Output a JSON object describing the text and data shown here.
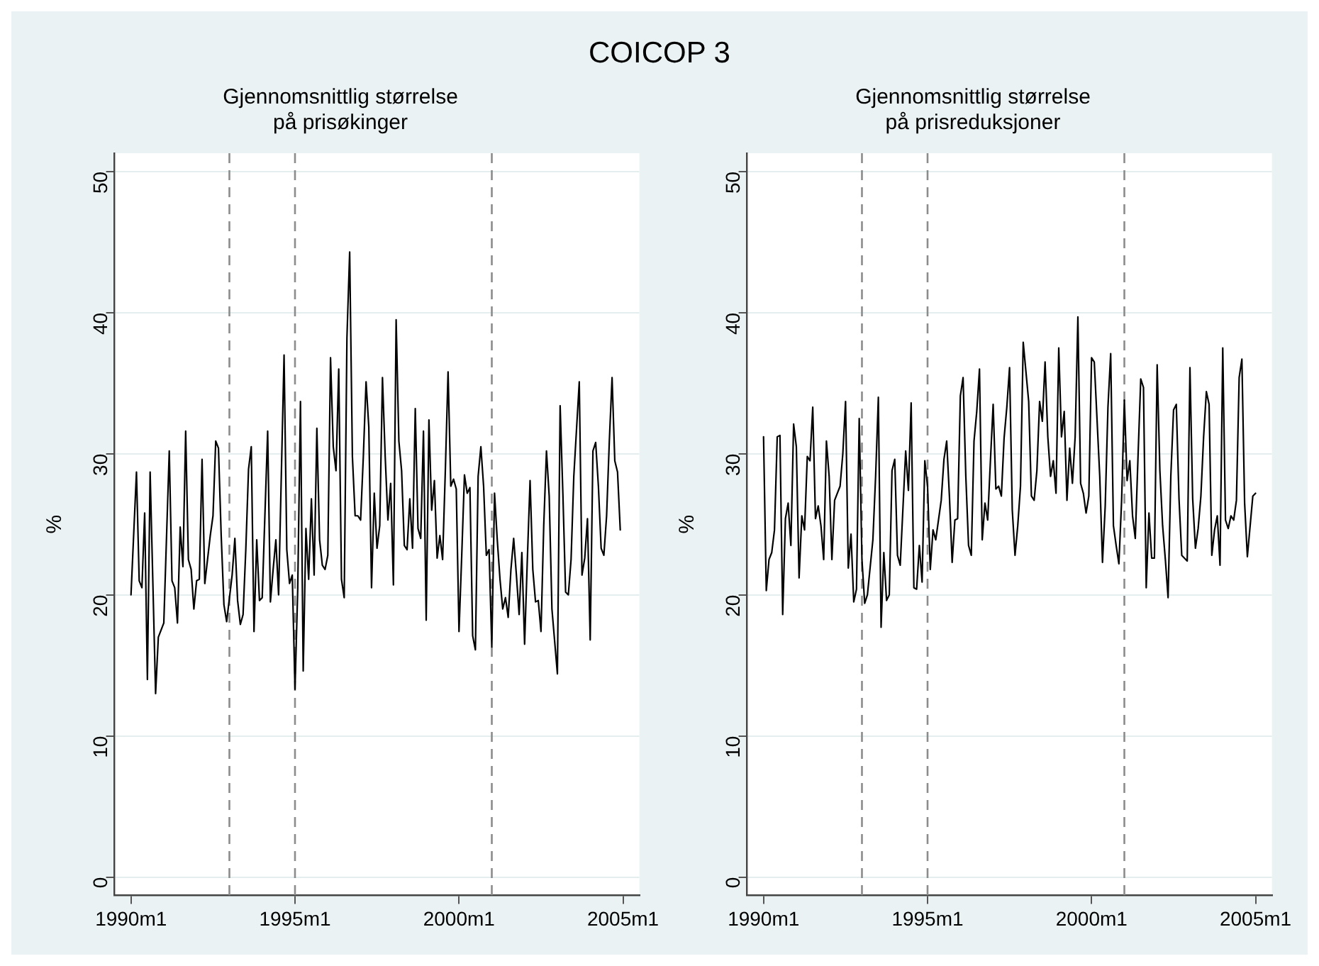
{
  "chart_data": [
    {
      "type": "line",
      "title": "COICOP 3",
      "subtitle": "Gjennomsnittlig størrelse\npå prisøkinger",
      "ylabel": "%",
      "xlim": [
        "1989-07",
        "2005-07"
      ],
      "ylim": [
        -1.3,
        51.3
      ],
      "xticks": [
        {
          "value": "1990-01",
          "label": "1990m1"
        },
        {
          "value": "1995-01",
          "label": "1995m1"
        },
        {
          "value": "2000-01",
          "label": "2000m1"
        },
        {
          "value": "2005-01",
          "label": "2005m1"
        }
      ],
      "yticks": [
        0,
        10,
        20,
        30,
        40,
        50
      ],
      "grid": "y",
      "legend": false,
      "ref_lines": [
        {
          "axis": "x",
          "value": "1993-01",
          "color": "#8c8c8c",
          "line_style": "dashed"
        },
        {
          "axis": "x",
          "value": "1995-01",
          "color": "#8c8c8c",
          "line_style": "dashed"
        },
        {
          "axis": "x",
          "value": "2001-01",
          "color": "#8c8c8c",
          "line_style": "dashed"
        }
      ],
      "series": [
        {
          "color": "#000000",
          "x": [
            "1990-01",
            "1990-03",
            "1990-04",
            "1990-05",
            "1990-06",
            "1990-07",
            "1990-08",
            "1990-10",
            "1990-11",
            "1991-01",
            "1991-03",
            "1991-04",
            "1991-05",
            "1991-06",
            "1991-07",
            "1991-08",
            "1991-09",
            "1991-10",
            "1991-11",
            "1991-12",
            "1992-01",
            "1992-02",
            "1992-03",
            "1992-04",
            "1992-06",
            "1992-07",
            "1992-08",
            "1992-09",
            "1992-10",
            "1992-11",
            "1992-12",
            "1993-02",
            "1993-03",
            "1993-04",
            "1993-05",
            "1993-06",
            "1993-07",
            "1993-08",
            "1993-09",
            "1993-10",
            "1993-11",
            "1993-12",
            "1994-01",
            "1994-03",
            "1994-04",
            "1994-05",
            "1994-06",
            "1994-07",
            "1994-09",
            "1994-10",
            "1994-11",
            "1994-12",
            "1995-01",
            "1995-02",
            "1995-03",
            "1995-04",
            "1995-05",
            "1995-06",
            "1995-07",
            "1995-08",
            "1995-09",
            "1995-10",
            "1995-11",
            "1995-12",
            "1996-01",
            "1996-02",
            "1996-03",
            "1996-04",
            "1996-05",
            "1996-06",
            "1996-07",
            "1996-08",
            "1996-09",
            "1996-10",
            "1996-11",
            "1996-12",
            "1997-01",
            "1997-02",
            "1997-03",
            "1997-04",
            "1997-05",
            "1997-06",
            "1997-07",
            "1997-08",
            "1997-09",
            "1997-10",
            "1997-11",
            "1997-12",
            "1998-01",
            "1998-02",
            "1998-03",
            "1998-04",
            "1998-05",
            "1998-06",
            "1998-07",
            "1998-08",
            "1998-09",
            "1998-10",
            "1998-11",
            "1998-12",
            "1999-01",
            "1999-02",
            "1999-03",
            "1999-04",
            "1999-05",
            "1999-06",
            "1999-07",
            "1999-08",
            "1999-09",
            "1999-10",
            "1999-11",
            "1999-12",
            "2000-01",
            "2000-02",
            "2000-03",
            "2000-04",
            "2000-05",
            "2000-06",
            "2000-07",
            "2000-08",
            "2000-09",
            "2000-10",
            "2000-11",
            "2000-12",
            "2001-01",
            "2001-02",
            "2001-03",
            "2001-04",
            "2001-05",
            "2001-06",
            "2001-07",
            "2001-08",
            "2001-09",
            "2001-10",
            "2001-11",
            "2001-12",
            "2002-01",
            "2002-02",
            "2002-03",
            "2002-04",
            "2002-05",
            "2002-06",
            "2002-07",
            "2002-08",
            "2002-09",
            "2002-10",
            "2002-11",
            "2003-01",
            "2003-02",
            "2003-03",
            "2003-04",
            "2003-05",
            "2003-06",
            "2003-07",
            "2003-09",
            "2003-10",
            "2003-11",
            "2003-12",
            "2004-01",
            "2004-02",
            "2004-03",
            "2004-04",
            "2004-05",
            "2004-06",
            "2004-07",
            "2004-08",
            "2004-09",
            "2004-10",
            "2004-11",
            "2004-12"
          ],
          "values": [
            20,
            28.7,
            21,
            20.5,
            25.8,
            14,
            28.7,
            13,
            17,
            18,
            30.2,
            21,
            20.5,
            18,
            24.8,
            22,
            31.6,
            22.5,
            21.8,
            19,
            21,
            21.1,
            29.6,
            20.8,
            24.2,
            25.6,
            30.9,
            30.4,
            24.2,
            19.3,
            18.1,
            21.4,
            24,
            19.6,
            17.9,
            18.6,
            23.2,
            28.9,
            30.5,
            17.4,
            23.9,
            19.6,
            19.8,
            31.6,
            19.5,
            21.8,
            23.9,
            20,
            37,
            23.2,
            20.8,
            21.4,
            13.3,
            20.4,
            33.7,
            14.6,
            24.7,
            21.1,
            26.8,
            21.4,
            31.8,
            23.9,
            22.1,
            21.8,
            22.8,
            36.8,
            30.5,
            28.8,
            36,
            21.1,
            19.8,
            38.2,
            44.3,
            29.8,
            25.6,
            25.6,
            25.3,
            29.8,
            35.1,
            31.9,
            20.5,
            27.2,
            23.3,
            24.9,
            35.4,
            29.8,
            25.3,
            27.9,
            20.7,
            39.5,
            30.9,
            28.8,
            23.5,
            23.2,
            26.8,
            23.3,
            33.2,
            24.7,
            24,
            31.6,
            18.2,
            32.4,
            26,
            28.1,
            22.6,
            24.2,
            22.5,
            28.8,
            35.8,
            27.7,
            28.2,
            27.5,
            17.4,
            22.8,
            28.5,
            27.2,
            27.6,
            17.1,
            16.1,
            28.4,
            30.5,
            27.7,
            22.8,
            23.2,
            16.3,
            27.2,
            23.9,
            21.1,
            19,
            19.8,
            18.4,
            21.8,
            24,
            21.4,
            18.6,
            23,
            16.5,
            22.5,
            28.1,
            21.8,
            19.5,
            19.6,
            17.4,
            24.9,
            30.2,
            27,
            19,
            14.4,
            33.4,
            27.2,
            20.2,
            20,
            22.5,
            28.4,
            35.1,
            21.4,
            22.6,
            25.4,
            16.8,
            30.2,
            30.8,
            27.7,
            23.3,
            22.8,
            25.6,
            30.9,
            35.4,
            29.5,
            28.7,
            24.6
          ]
        }
      ]
    },
    {
      "type": "line",
      "subtitle": "Gjennomsnittlig størrelse\npå prisreduksjoner",
      "ylabel": "%",
      "xlim": [
        "1989-07",
        "2005-07"
      ],
      "ylim": [
        -1.3,
        51.3
      ],
      "xticks": [
        {
          "value": "1990-01",
          "label": "1990m1"
        },
        {
          "value": "1995-01",
          "label": "1995m1"
        },
        {
          "value": "2000-01",
          "label": "2000m1"
        },
        {
          "value": "2005-01",
          "label": "2005m1"
        }
      ],
      "yticks": [
        0,
        10,
        20,
        30,
        40,
        50
      ],
      "grid": "y",
      "legend": false,
      "ref_lines": [
        {
          "axis": "x",
          "value": "1993-01",
          "color": "#8c8c8c",
          "line_style": "dashed"
        },
        {
          "axis": "x",
          "value": "1995-01",
          "color": "#8c8c8c",
          "line_style": "dashed"
        },
        {
          "axis": "x",
          "value": "2001-01",
          "color": "#8c8c8c",
          "line_style": "dashed"
        }
      ],
      "series": [
        {
          "color": "#000000",
          "x": [
            "1990-01",
            "1990-02",
            "1990-03",
            "1990-04",
            "1990-05",
            "1990-06",
            "1990-07",
            "1990-08",
            "1990-09",
            "1990-10",
            "1990-11",
            "1990-12",
            "1991-01",
            "1991-02",
            "1991-03",
            "1991-04",
            "1991-05",
            "1991-06",
            "1991-07",
            "1991-08",
            "1991-09",
            "1991-10",
            "1991-11",
            "1991-12",
            "1992-01",
            "1992-02",
            "1992-03",
            "1992-04",
            "1992-05",
            "1992-06",
            "1992-07",
            "1992-08",
            "1992-09",
            "1992-10",
            "1992-11",
            "1992-12",
            "1993-01",
            "1993-02",
            "1993-03",
            "1993-05",
            "1993-06",
            "1993-07",
            "1993-08",
            "1993-09",
            "1993-10",
            "1993-11",
            "1993-12",
            "1994-01",
            "1994-02",
            "1994-03",
            "1994-05",
            "1994-06",
            "1994-07",
            "1994-08",
            "1994-09",
            "1994-10",
            "1994-11",
            "1994-12",
            "1995-01",
            "1995-02",
            "1995-03",
            "1995-04",
            "1995-06",
            "1995-07",
            "1995-08",
            "1995-09",
            "1995-10",
            "1995-11",
            "1995-12",
            "1996-01",
            "1996-02",
            "1996-03",
            "1996-04",
            "1996-05",
            "1996-06",
            "1996-07",
            "1996-08",
            "1996-09",
            "1996-10",
            "1996-11",
            "1996-12",
            "1997-01",
            "1997-02",
            "1997-03",
            "1997-04",
            "1997-05",
            "1997-06",
            "1997-07",
            "1997-08",
            "1997-09",
            "1997-10",
            "1997-11",
            "1997-12",
            "1998-02",
            "1998-03",
            "1998-04",
            "1998-05",
            "1998-06",
            "1998-07",
            "1998-08",
            "1998-09",
            "1998-10",
            "1998-11",
            "1998-12",
            "1999-01",
            "1999-02",
            "1999-03",
            "1999-04",
            "1999-05",
            "1999-06",
            "1999-07",
            "1999-08",
            "1999-09",
            "1999-10",
            "1999-11",
            "1999-12",
            "2000-01",
            "2000-02",
            "2000-04",
            "2000-05",
            "2000-06",
            "2000-07",
            "2000-08",
            "2000-09",
            "2000-10",
            "2000-11",
            "2000-12",
            "2001-01",
            "2001-02",
            "2001-03",
            "2001-04",
            "2001-05",
            "2001-06",
            "2001-07",
            "2001-08",
            "2001-09",
            "2001-10",
            "2001-11",
            "2001-12",
            "2002-01",
            "2002-02",
            "2002-03",
            "2002-04",
            "2002-05",
            "2002-06",
            "2002-07",
            "2002-08",
            "2002-09",
            "2002-10",
            "2002-11",
            "2002-12",
            "2003-01",
            "2003-02",
            "2003-03",
            "2003-04",
            "2003-05",
            "2003-06",
            "2003-07",
            "2003-08",
            "2003-09",
            "2003-10",
            "2003-11",
            "2003-12",
            "2004-01",
            "2004-02",
            "2004-03",
            "2004-04",
            "2004-05",
            "2004-06",
            "2004-07",
            "2004-08",
            "2004-09",
            "2004-10",
            "2004-12",
            "2005-01"
          ],
          "values": [
            31.2,
            20.3,
            22.5,
            23,
            24.6,
            31.2,
            31.3,
            18.6,
            25.4,
            26.5,
            23.5,
            32.1,
            30.5,
            21.2,
            25.6,
            24.6,
            29.8,
            29.5,
            33.3,
            25.4,
            26.3,
            24.9,
            22.5,
            30.9,
            28.4,
            22.5,
            26.7,
            27.2,
            27.7,
            30,
            33.7,
            21.9,
            24.3,
            19.5,
            20.4,
            32.5,
            22.5,
            19.4,
            20,
            23.9,
            28.4,
            34,
            17.7,
            23,
            19.6,
            20,
            28.8,
            29.6,
            22.8,
            22.1,
            30.2,
            27.4,
            33.6,
            20.5,
            20.4,
            23.5,
            20.9,
            29.5,
            27.7,
            21.8,
            24.6,
            23.9,
            26.7,
            29.6,
            30.9,
            27,
            22.3,
            25.3,
            25.4,
            34.1,
            35.4,
            28.4,
            23.5,
            22.8,
            30.9,
            33,
            36,
            23.9,
            26.5,
            25.3,
            29.5,
            33.5,
            27.5,
            27.7,
            27,
            31.1,
            33.3,
            36.1,
            26,
            22.8,
            24.9,
            27.7,
            37.9,
            33.7,
            27,
            26.7,
            28.8,
            33.7,
            32.3,
            36.5,
            31.2,
            28.4,
            29.5,
            27.2,
            37.5,
            31.2,
            33,
            26.7,
            30.4,
            27.9,
            31.2,
            39.7,
            27.9,
            27.2,
            25.8,
            27,
            36.8,
            36.5,
            28.4,
            22.3,
            26.3,
            33.3,
            37.1,
            24.9,
            23.5,
            22.2,
            26.7,
            33.8,
            28.1,
            29.5,
            25.6,
            24,
            29.8,
            35.3,
            34.7,
            20.5,
            25.8,
            22.6,
            22.6,
            36.3,
            28.8,
            24.9,
            22.5,
            19.8,
            28.4,
            33.1,
            33.5,
            26.8,
            22.8,
            22.6,
            22.4,
            36.1,
            26.8,
            23.3,
            24.7,
            27,
            31.2,
            34.4,
            33.5,
            22.8,
            24.6,
            25.6,
            22.1,
            37.5,
            25.3,
            24.7,
            25.6,
            25.3,
            26.7,
            35.4,
            36.7,
            26.5,
            22.7,
            27,
            27.2
          ]
        }
      ]
    }
  ]
}
